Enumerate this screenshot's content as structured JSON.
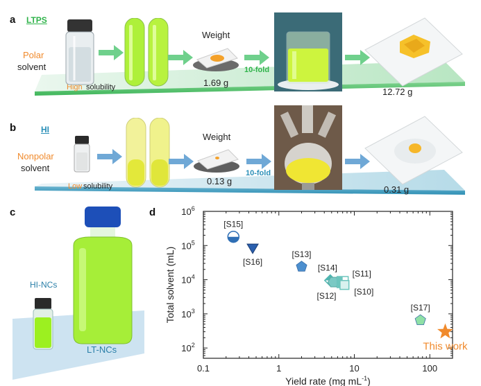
{
  "panel_a": {
    "label": "a",
    "tag": "LTPS",
    "solvent_kind": "Polar",
    "solvent_word": "solvent",
    "solubility_prefix": "High",
    "solubility_word": "solubility",
    "weight_title": "Weight",
    "weight_value": "1.69 g",
    "scale_label": "10-fold",
    "final_weight": "12.72 g",
    "accent": "#2fb34a"
  },
  "panel_b": {
    "label": "b",
    "tag": "HI",
    "solvent_kind": "Nonpolar",
    "solvent_word": "solvent",
    "solubility_prefix": "Low",
    "solubility_word": "solubility",
    "weight_title": "Weight",
    "weight_value": "0.13 g",
    "scale_label": "10-fold",
    "final_weight": "0.31 g",
    "accent": "#2a8fb8"
  },
  "panel_c": {
    "label": "c",
    "small_vial_label": "HI-NCs",
    "bottle_label": "LT-NCs"
  },
  "panel_d": {
    "label": "d"
  },
  "chart_data": {
    "type": "scatter",
    "title": "",
    "xlabel": "Yield rate (mg mL",
    "xlabel_sup": "-1",
    "xlabel_end": ")",
    "ylabel": "Total solvent (mL)",
    "xscale": "log",
    "yscale": "log",
    "xlim": [
      0.1,
      200
    ],
    "ylim": [
      50,
      1000000
    ],
    "x_ticks": [
      {
        "value": 0.1,
        "label": "0.1"
      },
      {
        "value": 1,
        "label": "1"
      },
      {
        "value": 10,
        "label": "10"
      },
      {
        "value": 100,
        "label": "100"
      }
    ],
    "y_ticks": [
      {
        "value": 100,
        "base": "10",
        "exp": "2"
      },
      {
        "value": 1000,
        "base": "10",
        "exp": "3"
      },
      {
        "value": 10000,
        "base": "10",
        "exp": "4"
      },
      {
        "value": 100000,
        "base": "10",
        "exp": "5"
      },
      {
        "value": 1000000,
        "base": "10",
        "exp": "6"
      }
    ],
    "points": [
      {
        "label": "[S15]",
        "x": 0.25,
        "y": 180000,
        "marker": "half-circle",
        "color": "#2f6fb5",
        "label_pos": "above"
      },
      {
        "label": "[S16]",
        "x": 0.45,
        "y": 85000,
        "marker": "triangle-down",
        "color": "#2a5fae",
        "label_pos": "below"
      },
      {
        "label": "[S13]",
        "x": 2.0,
        "y": 24000,
        "marker": "pentagon",
        "color": "#4c8fcf",
        "label_pos": "above"
      },
      {
        "label": "[S14]",
        "x": 4.8,
        "y": 9500,
        "marker": "diamond",
        "color": "#4fb5b0",
        "label_pos": "above"
      },
      {
        "label": "[S12]",
        "x": 5.3,
        "y": 8500,
        "marker": "hexagon",
        "color": "#7ac9c4",
        "label_pos": "below"
      },
      {
        "label": "[S11]",
        "x": 7.0,
        "y": 8500,
        "marker": "half-square",
        "color": "#6cc5bd",
        "label_pos": "right-up"
      },
      {
        "label": "[S10]",
        "x": 7.4,
        "y": 7000,
        "marker": "square-open",
        "color": "#6cc5bd",
        "label_pos": "right-down"
      },
      {
        "label": "[S17]",
        "x": 75,
        "y": 650,
        "marker": "pentagon",
        "color": "#8fe0a6",
        "label_pos": "above"
      },
      {
        "label": "This work",
        "x": 160,
        "y": 300,
        "marker": "star",
        "color": "#f08a2c",
        "label_pos": "below"
      }
    ]
  }
}
